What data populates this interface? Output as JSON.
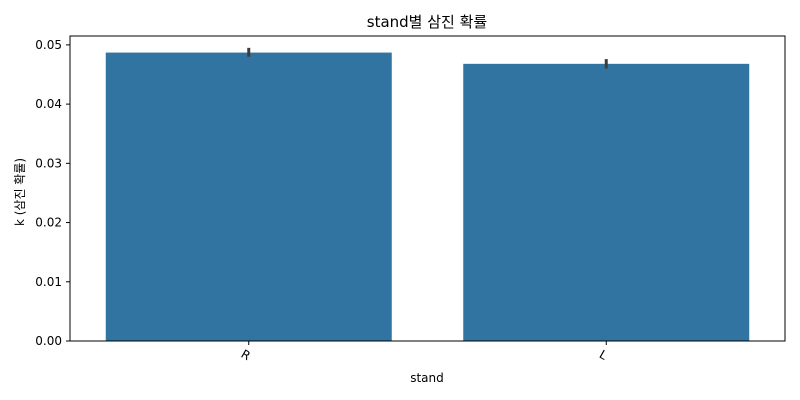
{
  "chart_data": {
    "type": "bar",
    "title": "stand별 삼진 확률",
    "xlabel": "stand",
    "ylabel": "k (삼진 확률)",
    "categories": [
      "R",
      "L"
    ],
    "values": [
      0.0487,
      0.0468
    ],
    "error_bars": [
      [
        0.048,
        0.0495
      ],
      [
        0.046,
        0.0476
      ]
    ],
    "ylim": [
      0,
      0.0515
    ],
    "yticks": [
      0.0,
      0.01,
      0.02,
      0.03,
      0.04,
      0.05
    ],
    "ytick_labels": [
      "0.00",
      "0.01",
      "0.02",
      "0.03",
      "0.04",
      "0.05"
    ],
    "grid": false,
    "colors": {
      "bar": "#3274a1",
      "error_bar": "#3d3d3d",
      "axis": "#000000"
    }
  }
}
